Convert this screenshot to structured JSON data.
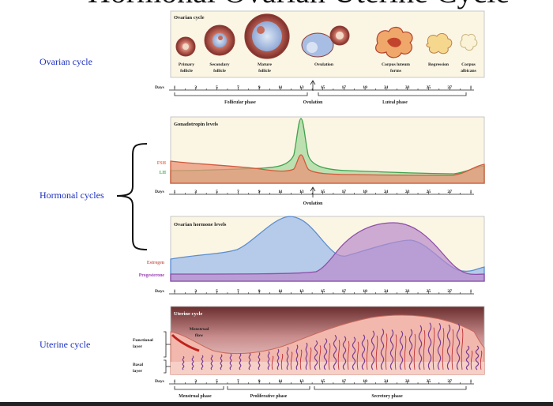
{
  "title": "Hormonal Ovarian Uterine Cycle",
  "side_labels": {
    "ovarian": "Ovarian cycle",
    "hormonal": "Hormonal cycles",
    "uterine": "Uterine cycle"
  },
  "days_label": "Days",
  "days": [
    "1",
    "3",
    "5",
    "7",
    "9",
    "11",
    "13",
    "15",
    "17",
    "19",
    "21",
    "23",
    "25",
    "27",
    "1"
  ],
  "ovarian_panel": {
    "title": "Ovarian cycle",
    "stages": [
      {
        "line1": "Primary",
        "line2": "follicle"
      },
      {
        "line1": "Secondary",
        "line2": "follicle"
      },
      {
        "line1": "Mature",
        "line2": "follicle"
      },
      {
        "line1": "Ovulation",
        "line2": ""
      },
      {
        "line1": "Corpus luteum",
        "line2": "forms"
      },
      {
        "line1": "Regression",
        "line2": ""
      },
      {
        "line1": "Corpus",
        "line2": "albicans"
      }
    ],
    "phases": {
      "follicular": "Follicular phase",
      "ovulation": "Ovulation",
      "luteal": "Luteal phase"
    }
  },
  "gonadotropin_panel": {
    "title": "Gonadotropin levels",
    "legend": {
      "fsh": "FSH",
      "lh": "LH"
    },
    "ovulation": "Ovulation",
    "colors": {
      "fsh": "#e8704f",
      "lh": "#4caf5a"
    }
  },
  "ovarian_hormone_panel": {
    "title": "Ovarian hormone levels",
    "legend": {
      "estrogen": "Estrogen",
      "progesterone": "Progesterone"
    },
    "colors": {
      "estrogen": "#6f9ed8",
      "progesterone": "#9d62b8"
    }
  },
  "uterine_panel": {
    "title": "Uterine cycle",
    "menstrual_flow": {
      "line1": "Menstrual",
      "line2": "flow"
    },
    "layers": {
      "functional_1": "Functional",
      "functional_2": "layer",
      "basal_1": "Basal",
      "basal_2": "layer"
    },
    "phases": {
      "menstrual": "Menstrual phase",
      "proliferative": "Proliferative phase",
      "secretory": "Secretory phase"
    }
  }
}
